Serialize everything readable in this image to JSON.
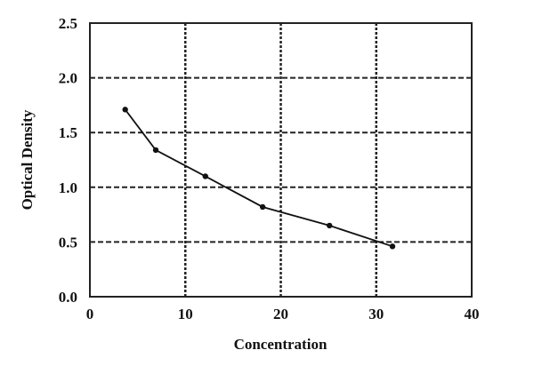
{
  "chart_data": {
    "type": "line",
    "title": "",
    "xlabel": "Concentration",
    "ylabel": "Optical Density",
    "xlim": [
      0,
      40
    ],
    "ylim": [
      0,
      2.5
    ],
    "xticks": [
      "0",
      "10",
      "20",
      "30",
      "40"
    ],
    "yticks": [
      "0.0",
      "0.5",
      "1.0",
      "1.5",
      "2.0",
      "2.5"
    ],
    "grid": true,
    "series": [
      {
        "x": [
          3.7,
          6.9,
          12.1,
          18.1,
          25.1,
          31.7
        ],
        "y": [
          1.71,
          1.34,
          1.1,
          0.82,
          0.65,
          0.46
        ],
        "color": "#111111",
        "marker": "circle"
      }
    ]
  }
}
